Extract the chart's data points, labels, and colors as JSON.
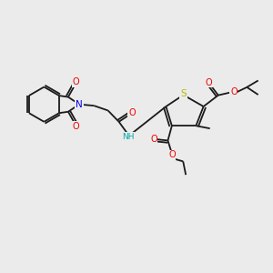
{
  "background_color": "#ebebeb",
  "bond_color": "#1a1a1a",
  "atom_colors": {
    "S": "#b8b800",
    "N": "#0000ee",
    "O": "#ee0000",
    "NH": "#00aaaa",
    "C": "#1a1a1a"
  },
  "figsize": [
    3.0,
    3.0
  ],
  "dpi": 100
}
